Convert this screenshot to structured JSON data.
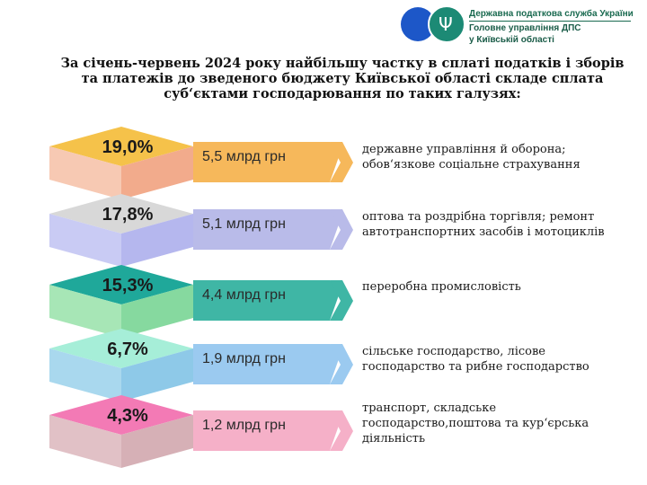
{
  "header": {
    "line1": "Державна податкова служба України",
    "line2": "Головне управління ДПС",
    "line3": "у Київській області"
  },
  "title": "За січень-червень 2024 року найбільшу частку в сплаті податків і зборів та платежів до зведеного бюджету Київської області складе сплата суб‘єктами господарювання по таких галузях:",
  "rows": [
    {
      "pct": "19,0%",
      "amount": "5,5 млрд грн",
      "desc": "державне управління й оборона; обов‘язкове соціальне страхування",
      "c_top": "#f5c24a",
      "c_side": "#f2ab8c",
      "c_front": "#f7c9b3",
      "c_arrow": "#f6b85b"
    },
    {
      "pct": "17,8%",
      "amount": "5,1 млрд грн",
      "desc": "оптова та роздрібна торгівля; ремонт автотранспортних засобів і мотоциклів",
      "c_top": "#d8d8d8",
      "c_side": "#b5b7ee",
      "c_front": "#c9cbf4",
      "c_arrow": "#b9bbe9"
    },
    {
      "pct": "15,3%",
      "amount": "4,4 млрд грн",
      "desc": "переробна промисловість",
      "c_top": "#1fa89a",
      "c_side": "#86d99f",
      "c_front": "#a7e6b6",
      "c_arrow": "#3fb6a5"
    },
    {
      "pct": "6,7%",
      "amount": "1,9 млрд грн",
      "desc": "сільське господарство, лісове господарство та рибне господарство",
      "c_top": "#a6eed8",
      "c_side": "#8ec9e8",
      "c_front": "#a9d8ee",
      "c_arrow": "#9bcaf0"
    },
    {
      "pct": "4,3%",
      "amount": "1,2 млрд грн",
      "desc": "транспорт, складське господарство,поштова та кур‘єрська діяльність",
      "c_top": "#f37ab5",
      "c_side": "#d6b0b6",
      "c_front": "#e1c1c6",
      "c_arrow": "#f5b0c8"
    }
  ]
}
